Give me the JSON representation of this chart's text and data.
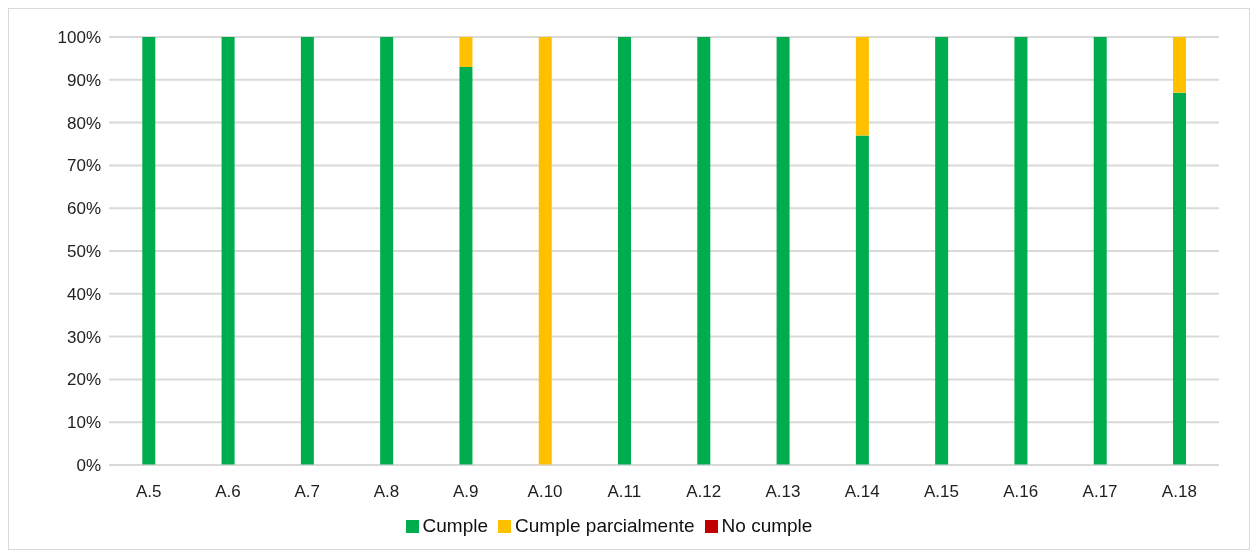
{
  "chart_data": {
    "type": "bar",
    "stacked": true,
    "categories": [
      "A.5",
      "A.6",
      "A.7",
      "A.8",
      "A.9",
      "A.10",
      "A.11",
      "A.12",
      "A.13",
      "A.14",
      "A.15",
      "A.16",
      "A.17",
      "A.18"
    ],
    "series": [
      {
        "name": "Cumple",
        "color": "#00ad4e",
        "values": [
          100,
          100,
          100,
          100,
          93,
          0,
          100,
          100,
          100,
          77,
          100,
          100,
          100,
          87
        ]
      },
      {
        "name": "Cumple parcialmente",
        "color": "#ffc000",
        "values": [
          0,
          0,
          0,
          0,
          7,
          100,
          0,
          0,
          0,
          23,
          0,
          0,
          0,
          13
        ]
      },
      {
        "name": "No cumple",
        "color": "#c00000",
        "values": [
          0,
          0,
          0,
          0,
          0,
          0,
          0,
          0,
          0,
          0,
          0,
          0,
          0,
          0
        ]
      }
    ],
    "ylim": [
      0,
      100
    ],
    "yticks": [
      {
        "value": 0,
        "label": "0%"
      },
      {
        "value": 10,
        "label": "10%"
      },
      {
        "value": 20,
        "label": "20%"
      },
      {
        "value": 30,
        "label": "30%"
      },
      {
        "value": 40,
        "label": "40%"
      },
      {
        "value": 50,
        "label": "50%"
      },
      {
        "value": 60,
        "label": "60%"
      },
      {
        "value": 70,
        "label": "70%"
      },
      {
        "value": 80,
        "label": "80%"
      },
      {
        "value": 90,
        "label": "90%"
      },
      {
        "value": 100,
        "label": "100%"
      }
    ],
    "grid": "y",
    "legend": "bottom"
  }
}
